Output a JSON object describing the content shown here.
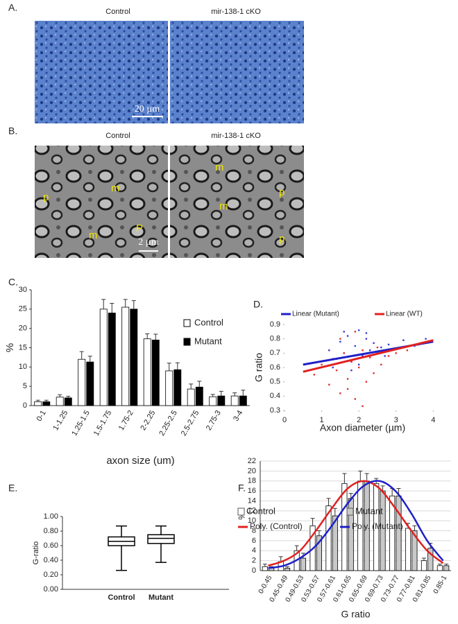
{
  "panels": {
    "A": {
      "label": "A.",
      "headers": [
        "Control",
        "mir-138-1 cKO"
      ],
      "scale_bar": "20 µm"
    },
    "B": {
      "label": "B.",
      "headers": [
        "Control",
        "mir-138-1 cKO"
      ],
      "scale_bar": "2 µm",
      "markers": [
        "p",
        "m",
        "m",
        "P",
        "m",
        "p",
        "m",
        "p"
      ]
    }
  },
  "chart_data": [
    {
      "type": "bar",
      "panel": "C.",
      "ylabel": "%",
      "xlabel": "axon size (um)",
      "categories": [
        "0-1",
        "1-1.25",
        "1.25-1.5",
        "1.5-1.75",
        "1.75-2",
        "2-2.25",
        "2.25-2.5",
        "2.5-2.75",
        "2.75-3",
        "3-4"
      ],
      "series": [
        {
          "name": "Control",
          "color": "#ffffff",
          "values": [
            1,
            2.2,
            12,
            25,
            25.5,
            17.3,
            9,
            4.3,
            2.3,
            2.5
          ],
          "errors": [
            0.4,
            0.6,
            2,
            2.5,
            2,
            1.3,
            2,
            1.3,
            0.6,
            0.8
          ]
        },
        {
          "name": "Mutant",
          "color": "#000000",
          "values": [
            1,
            2,
            11.3,
            24,
            25,
            17,
            9.3,
            4.8,
            2.5,
            2.5
          ],
          "errors": [
            0.4,
            0.4,
            1.5,
            2.5,
            2.2,
            1.5,
            1.8,
            1.5,
            1.2,
            1.5
          ]
        }
      ],
      "ylim": [
        0,
        30
      ],
      "yticks": [
        0,
        5,
        10,
        15,
        20,
        25,
        30
      ],
      "grid": false
    },
    {
      "type": "scatter",
      "panel": "D.",
      "ylabel": "G ratio",
      "xlabel": "Axon diameter (µm)",
      "points": [
        {
          "color": "#3a3ad8",
          "x": [
            1.2,
            1.4,
            1.5,
            1.6,
            1.7,
            1.8,
            1.9,
            2.0,
            2.1,
            2.2,
            2.3,
            2.4,
            2.5,
            2.6,
            2.8,
            3.0,
            3.2,
            3.5,
            1.3,
            1.8,
            2.0,
            2.2,
            1.6,
            2.7,
            3.8
          ],
          "y": [
            0.72,
            0.66,
            0.78,
            0.7,
            0.82,
            0.64,
            0.75,
            0.86,
            0.68,
            0.8,
            0.72,
            0.77,
            0.7,
            0.74,
            0.76,
            0.73,
            0.79,
            0.75,
            0.6,
            0.58,
            0.62,
            0.84,
            0.85,
            0.68,
            0.8
          ]
        },
        {
          "color": "#e03030",
          "x": [
            0.8,
            1.0,
            1.2,
            1.3,
            1.4,
            1.5,
            1.6,
            1.7,
            1.8,
            1.9,
            2.0,
            2.1,
            2.2,
            2.3,
            2.4,
            2.5,
            2.6,
            2.8,
            3.0,
            3.3,
            1.5,
            1.7,
            1.9,
            2.1,
            3.6
          ],
          "y": [
            0.55,
            0.62,
            0.48,
            0.66,
            0.58,
            0.42,
            0.7,
            0.52,
            0.64,
            0.38,
            0.6,
            0.72,
            0.5,
            0.67,
            0.56,
            0.74,
            0.62,
            0.68,
            0.7,
            0.72,
            0.8,
            0.45,
            0.85,
            0.33,
            0.76
          ]
        }
      ],
      "trendlines": [
        {
          "name": "Linear (Mutant)",
          "color": "#1f1fc8",
          "x": [
            0.5,
            4
          ],
          "y": [
            0.62,
            0.78
          ]
        },
        {
          "name": "Linear (WT)",
          "color": "#e02020",
          "x": [
            0.5,
            4
          ],
          "y": [
            0.57,
            0.79
          ]
        }
      ],
      "xlim": [
        0,
        4.2
      ],
      "xticks": [
        0,
        1,
        2,
        3,
        4
      ],
      "ylim": [
        0.3,
        0.9
      ],
      "yticks": [
        0.3,
        0.4,
        0.5,
        0.6,
        0.7,
        0.8,
        0.9
      ],
      "grid": false
    },
    {
      "type": "box",
      "panel": "E.",
      "ylabel": "G-ratio",
      "categories": [
        "Control",
        "Mutant"
      ],
      "boxes": [
        {
          "min": 0.26,
          "q1": 0.6,
          "median": 0.66,
          "q3": 0.72,
          "max": 0.87
        },
        {
          "min": 0.37,
          "q1": 0.63,
          "median": 0.7,
          "q3": 0.75,
          "max": 0.87
        }
      ],
      "ylim": [
        0,
        1
      ],
      "yticks": [
        {
          "value": 0,
          "label": "0.00"
        },
        {
          "value": 0.2,
          "label": "0.20"
        },
        {
          "value": 0.4,
          "label": "0.40"
        },
        {
          "value": 0.6,
          "label": "0.60"
        },
        {
          "value": 0.8,
          "label": "0.80"
        },
        {
          "value": 1,
          "label": "1.00"
        }
      ],
      "grid": false
    },
    {
      "type": "bar",
      "panel": "F.",
      "ylabel": "%",
      "xlabel": "G ratio",
      "categories": [
        "0-0.45",
        "0.45-0.49",
        "0.49-0.53",
        "0.53-0.57",
        "0.57-0.61",
        "0.61-0.65",
        "0.65-0.69",
        "0.69-0.73",
        "0.73-0.77",
        "0.77-0.81",
        "0.81-0.85",
        "0.85-1"
      ],
      "series": [
        {
          "name": "Control",
          "color": "#ffffff",
          "values": [
            0.8,
            1.8,
            4,
            9,
            13,
            17.5,
            18,
            17.5,
            15,
            8.5,
            2,
            1
          ],
          "errors": [
            0.5,
            1,
            1,
            1.5,
            1.5,
            2,
            2,
            1,
            1.5,
            1,
            0.5,
            0.3
          ]
        },
        {
          "name": "Mutant",
          "color": "#c8c8c8",
          "values": [
            0.5,
            0.5,
            2.5,
            7,
            11,
            14.5,
            18,
            16,
            15,
            8,
            4.5,
            1
          ],
          "errors": [
            0.3,
            0.3,
            1,
            1,
            1.5,
            1,
            1.5,
            1,
            1.5,
            1,
            1,
            0.3
          ]
        }
      ],
      "lines": [
        {
          "name": "Poly. (Control)",
          "color": "#e02020",
          "values": [
            1,
            2,
            4,
            8,
            12.5,
            16.5,
            18,
            16.5,
            12.5,
            8,
            4,
            1.5
          ]
        },
        {
          "name": "Poly. (Mutant)",
          "color": "#1f1fc8",
          "values": [
            0.5,
            1,
            2.5,
            5,
            9,
            13.5,
            17,
            18,
            16,
            11.5,
            6,
            2
          ]
        }
      ],
      "ylim": [
        0,
        22
      ],
      "yticks": [
        0,
        2,
        4,
        6,
        8,
        10,
        12,
        14,
        16,
        18,
        20,
        22
      ],
      "grid": true
    }
  ]
}
